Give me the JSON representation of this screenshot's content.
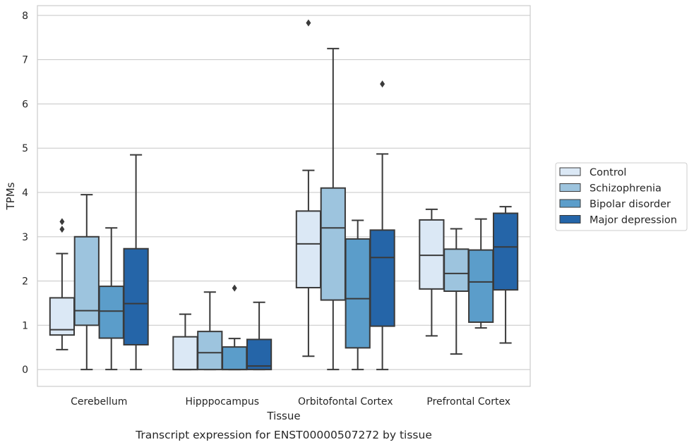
{
  "chart_data": {
    "type": "box",
    "title": "",
    "caption": "Transcript expression for ENST00000507272 by tissue",
    "xlabel": "Tissue",
    "ylabel": "TPMs",
    "ylim": [
      -0.38,
      8.22
    ],
    "yticks": [
      0,
      1,
      2,
      3,
      4,
      5,
      6,
      7,
      8
    ],
    "grid": true,
    "legend_position": "right",
    "categories": [
      "Cerebellum",
      "Hipppocampus",
      "Orbitofontal Cortex",
      "Prefrontal Cortex"
    ],
    "series": [
      {
        "name": "Control",
        "color": "#dbe8f5",
        "boxes": [
          {
            "whisker_low": 0.45,
            "q1": 0.78,
            "median": 0.9,
            "q3": 1.62,
            "whisker_high": 2.62,
            "outliers": [
              3.17,
              3.34
            ]
          },
          {
            "whisker_low": 0.0,
            "q1": 0.0,
            "median": 0.0,
            "q3": 0.74,
            "whisker_high": 1.25,
            "outliers": []
          },
          {
            "whisker_low": 0.3,
            "q1": 1.85,
            "median": 2.84,
            "q3": 3.58,
            "whisker_high": 4.5,
            "outliers": [
              7.83
            ]
          },
          {
            "whisker_low": 0.76,
            "q1": 1.82,
            "median": 2.58,
            "q3": 3.38,
            "whisker_high": 3.62,
            "outliers": []
          }
        ]
      },
      {
        "name": "Schizophrenia",
        "color": "#9dc4de",
        "boxes": [
          {
            "whisker_low": 0.0,
            "q1": 1.0,
            "median": 1.33,
            "q3": 3.0,
            "whisker_high": 3.95,
            "outliers": []
          },
          {
            "whisker_low": 0.0,
            "q1": 0.0,
            "median": 0.38,
            "q3": 0.86,
            "whisker_high": 1.75,
            "outliers": []
          },
          {
            "whisker_low": 0.0,
            "q1": 1.57,
            "median": 3.2,
            "q3": 4.1,
            "whisker_high": 7.25,
            "outliers": []
          },
          {
            "whisker_low": 0.35,
            "q1": 1.77,
            "median": 2.17,
            "q3": 2.72,
            "whisker_high": 3.18,
            "outliers": []
          }
        ]
      },
      {
        "name": "Bipolar disorder",
        "color": "#5b9dca",
        "boxes": [
          {
            "whisker_low": 0.0,
            "q1": 0.71,
            "median": 1.32,
            "q3": 1.88,
            "whisker_high": 3.2,
            "outliers": []
          },
          {
            "whisker_low": 0.0,
            "q1": 0.0,
            "median": 0.0,
            "q3": 0.51,
            "whisker_high": 0.7,
            "outliers": [
              1.84
            ]
          },
          {
            "whisker_low": 0.0,
            "q1": 0.49,
            "median": 1.6,
            "q3": 2.95,
            "whisker_high": 3.37,
            "outliers": []
          },
          {
            "whisker_low": 0.94,
            "q1": 1.07,
            "median": 1.98,
            "q3": 2.7,
            "whisker_high": 3.4,
            "outliers": []
          }
        ]
      },
      {
        "name": "Major depression",
        "color": "#2565a8",
        "boxes": [
          {
            "whisker_low": 0.0,
            "q1": 0.56,
            "median": 1.49,
            "q3": 2.73,
            "whisker_high": 4.85,
            "outliers": []
          },
          {
            "whisker_low": 0.0,
            "q1": 0.0,
            "median": 0.08,
            "q3": 0.68,
            "whisker_high": 1.52,
            "outliers": []
          },
          {
            "whisker_low": 0.0,
            "q1": 0.98,
            "median": 2.53,
            "q3": 3.15,
            "whisker_high": 4.87,
            "outliers": [
              6.45
            ]
          },
          {
            "whisker_low": 0.6,
            "q1": 1.8,
            "median": 2.77,
            "q3": 3.53,
            "whisker_high": 3.68,
            "outliers": []
          }
        ]
      }
    ]
  }
}
